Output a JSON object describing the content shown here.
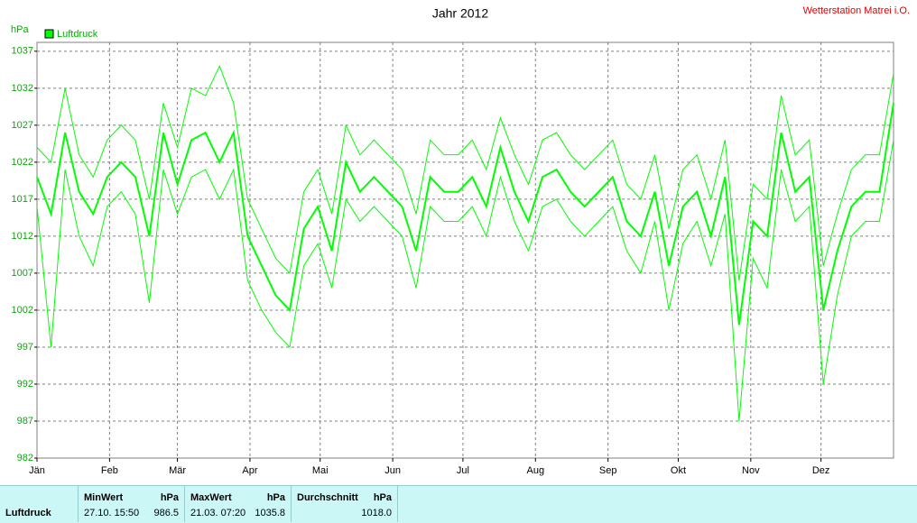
{
  "chart_data": {
    "type": "line",
    "title": "Jahr 2012",
    "subtitle": "Wetterstation Matrei i.O.",
    "y_label": "hPa",
    "x": [
      0,
      6,
      12,
      18,
      24,
      30,
      36,
      42,
      48,
      54,
      60,
      66,
      72,
      78,
      84,
      90,
      96,
      102,
      108,
      114,
      120,
      126,
      132,
      138,
      144,
      150,
      156,
      162,
      168,
      174,
      180,
      186,
      192,
      198,
      204,
      210,
      216,
      222,
      228,
      234,
      240,
      246,
      252,
      258,
      264,
      270,
      276,
      282,
      288,
      294,
      300,
      306,
      312,
      318,
      324,
      330,
      336,
      342,
      348,
      354,
      360,
      366
    ],
    "series": [
      {
        "name": "Luftdruck",
        "color": "#00ff00",
        "values": [
          1020,
          1015,
          1026,
          1018,
          1015,
          1020,
          1022,
          1020,
          1012,
          1026,
          1019,
          1025,
          1026,
          1022,
          1026,
          1012,
          1008,
          1004,
          1002,
          1013,
          1016,
          1010,
          1022,
          1018,
          1020,
          1018,
          1016,
          1010,
          1020,
          1018,
          1018,
          1020,
          1016,
          1024,
          1018,
          1014,
          1020,
          1021,
          1018,
          1016,
          1018,
          1020,
          1014,
          1012,
          1018,
          1008,
          1016,
          1018,
          1012,
          1020,
          1000,
          1014,
          1012,
          1026,
          1018,
          1020,
          1002,
          1010,
          1016,
          1018,
          1018,
          1030
        ],
        "low": [
          1016,
          997,
          1021,
          1012,
          1008,
          1016,
          1018,
          1015,
          1003,
          1021,
          1015,
          1020,
          1021,
          1017,
          1021,
          1006,
          1002,
          999,
          997,
          1008,
          1011,
          1005,
          1017,
          1014,
          1016,
          1014,
          1012,
          1005,
          1016,
          1014,
          1014,
          1016,
          1012,
          1020,
          1014,
          1010,
          1016,
          1017,
          1014,
          1012,
          1014,
          1016,
          1010,
          1007,
          1014,
          1002,
          1011,
          1014,
          1008,
          1015,
          987,
          1009,
          1005,
          1021,
          1014,
          1016,
          992,
          1004,
          1012,
          1014,
          1014,
          1025
        ],
        "high": [
          1024,
          1022,
          1032,
          1023,
          1020,
          1025,
          1027,
          1025,
          1017,
          1030,
          1024,
          1032,
          1031,
          1035,
          1030,
          1017,
          1013,
          1009,
          1007,
          1018,
          1021,
          1015,
          1027,
          1023,
          1025,
          1023,
          1021,
          1015,
          1025,
          1023,
          1023,
          1025,
          1021,
          1028,
          1023,
          1019,
          1025,
          1026,
          1023,
          1021,
          1023,
          1025,
          1019,
          1017,
          1023,
          1013,
          1021,
          1023,
          1017,
          1025,
          1006,
          1019,
          1017,
          1031,
          1023,
          1025,
          1008,
          1015,
          1021,
          1023,
          1023,
          1034
        ]
      }
    ],
    "xlim": [
      0,
      366
    ],
    "xticks": [
      {
        "value": 0,
        "label": "Jän"
      },
      {
        "value": 31,
        "label": "Feb"
      },
      {
        "value": 60,
        "label": "Mär"
      },
      {
        "value": 91,
        "label": "Apr"
      },
      {
        "value": 121,
        "label": "Mai"
      },
      {
        "value": 152,
        "label": "Jun"
      },
      {
        "value": 182,
        "label": "Jul"
      },
      {
        "value": 213,
        "label": "Aug"
      },
      {
        "value": 244,
        "label": "Sep"
      },
      {
        "value": 274,
        "label": "Okt"
      },
      {
        "value": 305,
        "label": "Nov"
      },
      {
        "value": 335,
        "label": "Dez"
      }
    ],
    "ylim": [
      982,
      1038.2
    ],
    "yticks": [
      982,
      987,
      992,
      997,
      1002,
      1007,
      1012,
      1017,
      1022,
      1027,
      1032,
      1037
    ],
    "grid": true,
    "legend": "top-left"
  },
  "stats": {
    "row_label": "Luftdruck",
    "min": {
      "header": "MinWert",
      "unit": "hPa",
      "time": "27.10.  15:50",
      "value": "986.5"
    },
    "max": {
      "header": "MaxWert",
      "unit": "hPa",
      "time": "21.03.  07:20",
      "value": "1035.8"
    },
    "avg": {
      "header": "Durchschnitt",
      "unit": "hPa",
      "value": "1018.0"
    }
  }
}
